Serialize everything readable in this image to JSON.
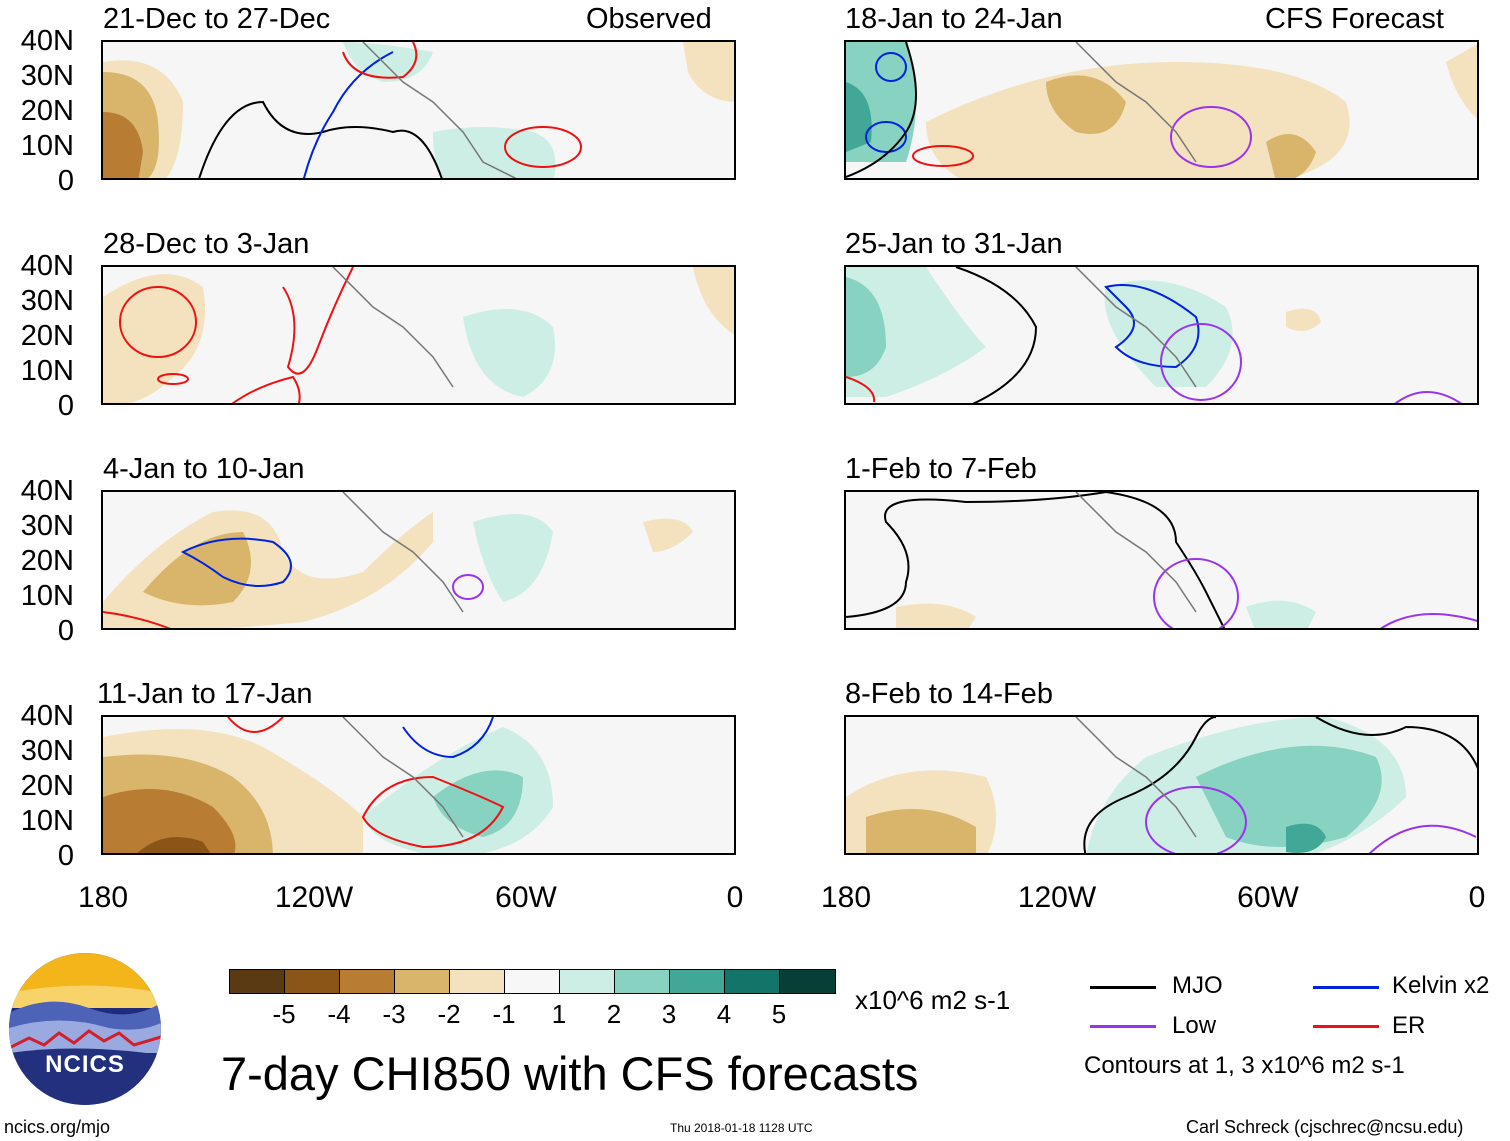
{
  "panels": {
    "observed_label": "Observed",
    "forecast_label": "CFS Forecast",
    "left": [
      {
        "title": "21-Dec to 27-Dec"
      },
      {
        "title": "28-Dec to 3-Jan"
      },
      {
        "title": "4-Jan to 10-Jan"
      },
      {
        "title": "11-Jan to 17-Jan"
      }
    ],
    "right": [
      {
        "title": "18-Jan to 24-Jan"
      },
      {
        "title": "25-Jan to 31-Jan"
      },
      {
        "title": "1-Feb to 7-Feb"
      },
      {
        "title": "8-Feb to 14-Feb"
      }
    ]
  },
  "axes": {
    "lat_ticks": [
      "40N",
      "30N",
      "20N",
      "10N",
      "0"
    ],
    "lon_ticks": [
      "180",
      "120W",
      "60W",
      "0"
    ]
  },
  "colorbar": {
    "colors": [
      "#5a3a12",
      "#8a5516",
      "#b97c33",
      "#d9b56c",
      "#f3e2bd",
      "#f7f7f7",
      "#cdeee4",
      "#88d2c1",
      "#41a796",
      "#13756a",
      "#073f37"
    ],
    "labels": [
      "-5",
      "-4",
      "-3",
      "-2",
      "-1",
      "1",
      "2",
      "3",
      "4",
      "5"
    ],
    "units": "x10^6 m2 s-1"
  },
  "legend": {
    "mjo": {
      "label": "MJO",
      "color": "#000000"
    },
    "kelvin": {
      "label": "Kelvin x2",
      "color": "#0022dd"
    },
    "low": {
      "label": "Low",
      "color": "#9933ee"
    },
    "er": {
      "label": "ER",
      "color": "#ee1111"
    },
    "note": "Contours at 1, 3 x10^6 m2 s-1"
  },
  "logo": {
    "text": "NCICS"
  },
  "main_title": "7-day CHI850 with CFS forecasts",
  "footer": {
    "url": "ncics.org/mjo",
    "timestamp": "Thu 2018-01-18 1128 UTC",
    "author": "Carl Schreck (cjschrec@ncsu.edu)"
  }
}
